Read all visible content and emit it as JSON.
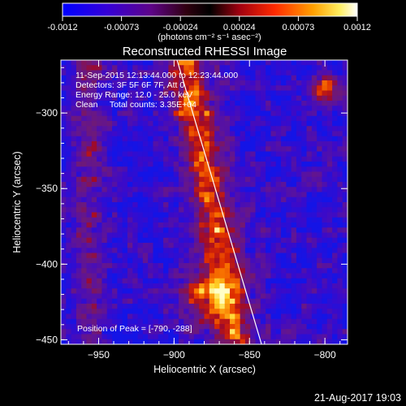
{
  "title": "Reconstructed RHESSI Image",
  "info_lines": [
    "11-Sep-2015 12:13:44.000 to 12:23:44.000",
    "Detectors: 3F 5F 6F 7F, Att 0",
    "Energy Range: 12.0 - 25.0 keV",
    "Clean     Total counts: 3.35E+04"
  ],
  "peak_text": "Position of Peak = [-790, -288]",
  "footer_timestamp": "21-Aug-2017 19:03",
  "colors": {
    "background": "#000000",
    "text": "#ffffff",
    "colorbar_low": "#0000ff",
    "colorbar_mid": "#000000",
    "colorbar_high": "#ffffff"
  },
  "colorbar": {
    "tick_labels": [
      "-0.0012",
      "-0.00073",
      "-0.00024",
      "0.00024",
      "0.00073",
      "0.0012"
    ],
    "units_label": "(photons cm⁻² s⁻¹ asec⁻²)",
    "range": [
      -0.0012,
      0.0012
    ]
  },
  "chart_data": {
    "type": "heatmap",
    "title": "Reconstructed RHESSI Image",
    "xlabel": "Heliocentric X (arcsec)",
    "ylabel": "Heliocentric Y (arcsec)",
    "xlim": [
      -975,
      -785
    ],
    "ylim": [
      -453,
      -265
    ],
    "x_ticks": [
      -950,
      -900,
      -850,
      -800
    ],
    "y_ticks": [
      -300,
      -350,
      -400,
      -450
    ],
    "x_tick_labels": [
      "−950",
      "−900",
      "−850",
      "−800"
    ],
    "y_tick_labels": [
      "−300",
      "−350",
      "−400",
      "−450"
    ],
    "value_range": [
      -0.0012,
      0.0012
    ],
    "peak_position": [
      -790,
      -288
    ],
    "limb_line": [
      [
        -898,
        -265
      ],
      [
        -842,
        -453
      ]
    ]
  }
}
